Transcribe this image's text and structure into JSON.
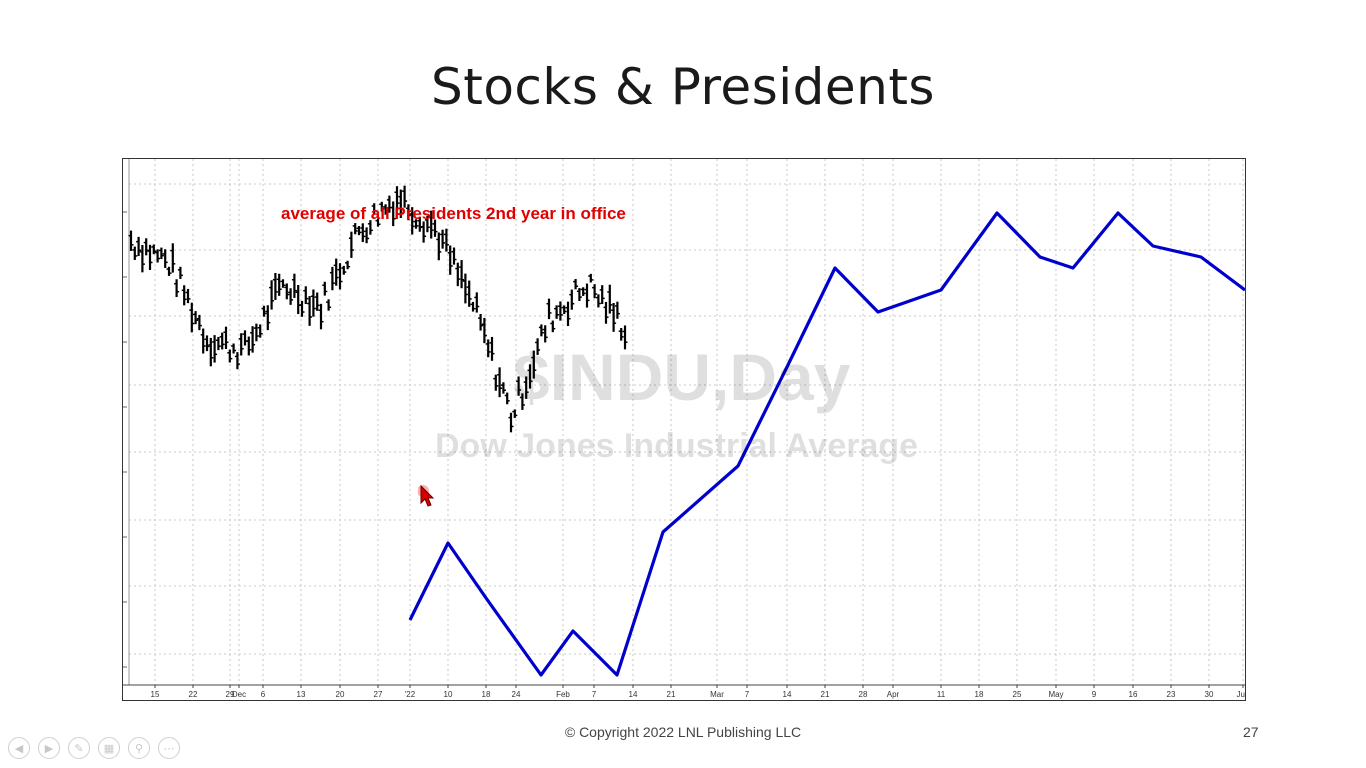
{
  "slide": {
    "title": "Stocks & Presidents",
    "copyright": "© Copyright 2022 LNL Publishing LLC",
    "page_number": "27"
  },
  "chart": {
    "annotation": "average of all Presidents 2nd year in office",
    "watermark_symbol": "$INDU,Day",
    "watermark_name": "Dow Jones Industrial Average",
    "annotation_color": "#e00000",
    "overlay_color": "#0000cc",
    "bar_color": "#000000"
  },
  "chart_data": {
    "type": "line",
    "x_ticks": [
      "15",
      "22",
      "29",
      "Dec",
      "6",
      "13",
      "20",
      "27",
      "'22",
      "10",
      "18",
      "24",
      "Feb",
      "7",
      "14",
      "21",
      "Mar",
      "7",
      "14",
      "21",
      "28",
      "Apr",
      "11",
      "18",
      "25",
      "May",
      "9",
      "16",
      "23",
      "30",
      "Jun"
    ],
    "grid": true,
    "series": [
      {
        "style": "ohlc-bars",
        "values": [
          {
            "x": "15",
            "y": 0.5
          },
          {
            "x": "22",
            "y": 0.3
          },
          {
            "x": "29",
            "y": -0.4
          },
          {
            "x": "6",
            "y": -0.5
          },
          {
            "x": "13",
            "y": 0.1
          },
          {
            "x": "20",
            "y": -0.1
          },
          {
            "x": "27",
            "y": 0.6
          },
          {
            "x": "'22",
            "y": 0.9
          },
          {
            "x": "10",
            "y": 0.6
          },
          {
            "x": "18",
            "y": -0.1
          },
          {
            "x": "24",
            "y": -1.1
          },
          {
            "x": "Feb",
            "y": -0.2
          },
          {
            "x": "7",
            "y": 0.1
          },
          {
            "x": "14",
            "y": -0.3
          }
        ]
      },
      {
        "style": "line",
        "values": [
          {
            "x": "'22",
            "y": -1.6
          },
          {
            "x": "10",
            "y": -0.9
          },
          {
            "x": "18",
            "y": -1.4
          },
          {
            "x": "24",
            "y": -2.1
          },
          {
            "x": "Feb",
            "y": -1.7
          },
          {
            "x": "14",
            "y": -2.1
          },
          {
            "x": "21",
            "y": -0.8
          },
          {
            "x": "7",
            "y": -0.2
          },
          {
            "x": "14",
            "y": 0.7
          },
          {
            "x": "21",
            "y": 1.6
          },
          {
            "x": "Apr",
            "y": 1.2
          },
          {
            "x": "11",
            "y": 1.4
          },
          {
            "x": "18",
            "y": 2.1
          },
          {
            "x": "25",
            "y": 1.7
          },
          {
            "x": "May",
            "y": 1.6
          },
          {
            "x": "16",
            "y": 2.1
          },
          {
            "x": "23",
            "y": 1.8
          },
          {
            "x": "30",
            "y": 1.7
          },
          {
            "x": "Jun",
            "y": 1.4
          }
        ]
      }
    ]
  },
  "nav": {
    "icons": [
      "back-icon",
      "forward-icon",
      "pen-icon",
      "slides-icon",
      "zoom-icon",
      "more-icon"
    ],
    "glyphs": [
      "◀",
      "▶",
      "✎",
      "▦",
      "⚲",
      "⋯"
    ]
  }
}
